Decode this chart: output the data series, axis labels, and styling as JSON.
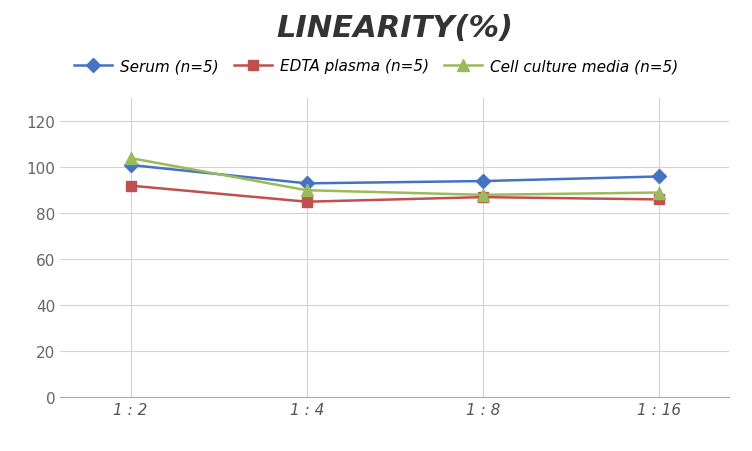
{
  "title": "LINEARITY(%)",
  "x_labels": [
    "1 : 2",
    "1 : 4",
    "1 : 8",
    "1 : 16"
  ],
  "x_positions": [
    0,
    1,
    2,
    3
  ],
  "series": [
    {
      "label": "Serum (n=5)",
      "values": [
        101,
        93,
        94,
        96
      ],
      "color": "#4472C4",
      "marker": "D",
      "marker_size": 7,
      "linewidth": 1.8
    },
    {
      "label": "EDTA plasma (n=5)",
      "values": [
        92,
        85,
        87,
        86
      ],
      "color": "#C0504D",
      "marker": "s",
      "marker_size": 7,
      "linewidth": 1.8
    },
    {
      "label": "Cell culture media (n=5)",
      "values": [
        104,
        90,
        88,
        89
      ],
      "color": "#9BBB59",
      "marker": "^",
      "marker_size": 8,
      "linewidth": 1.8
    }
  ],
  "ylim": [
    0,
    130
  ],
  "yticks": [
    0,
    20,
    40,
    60,
    80,
    100,
    120
  ],
  "background_color": "#FFFFFF",
  "grid_color": "#D3D3D3",
  "title_fontsize": 22,
  "legend_fontsize": 11,
  "tick_fontsize": 11
}
